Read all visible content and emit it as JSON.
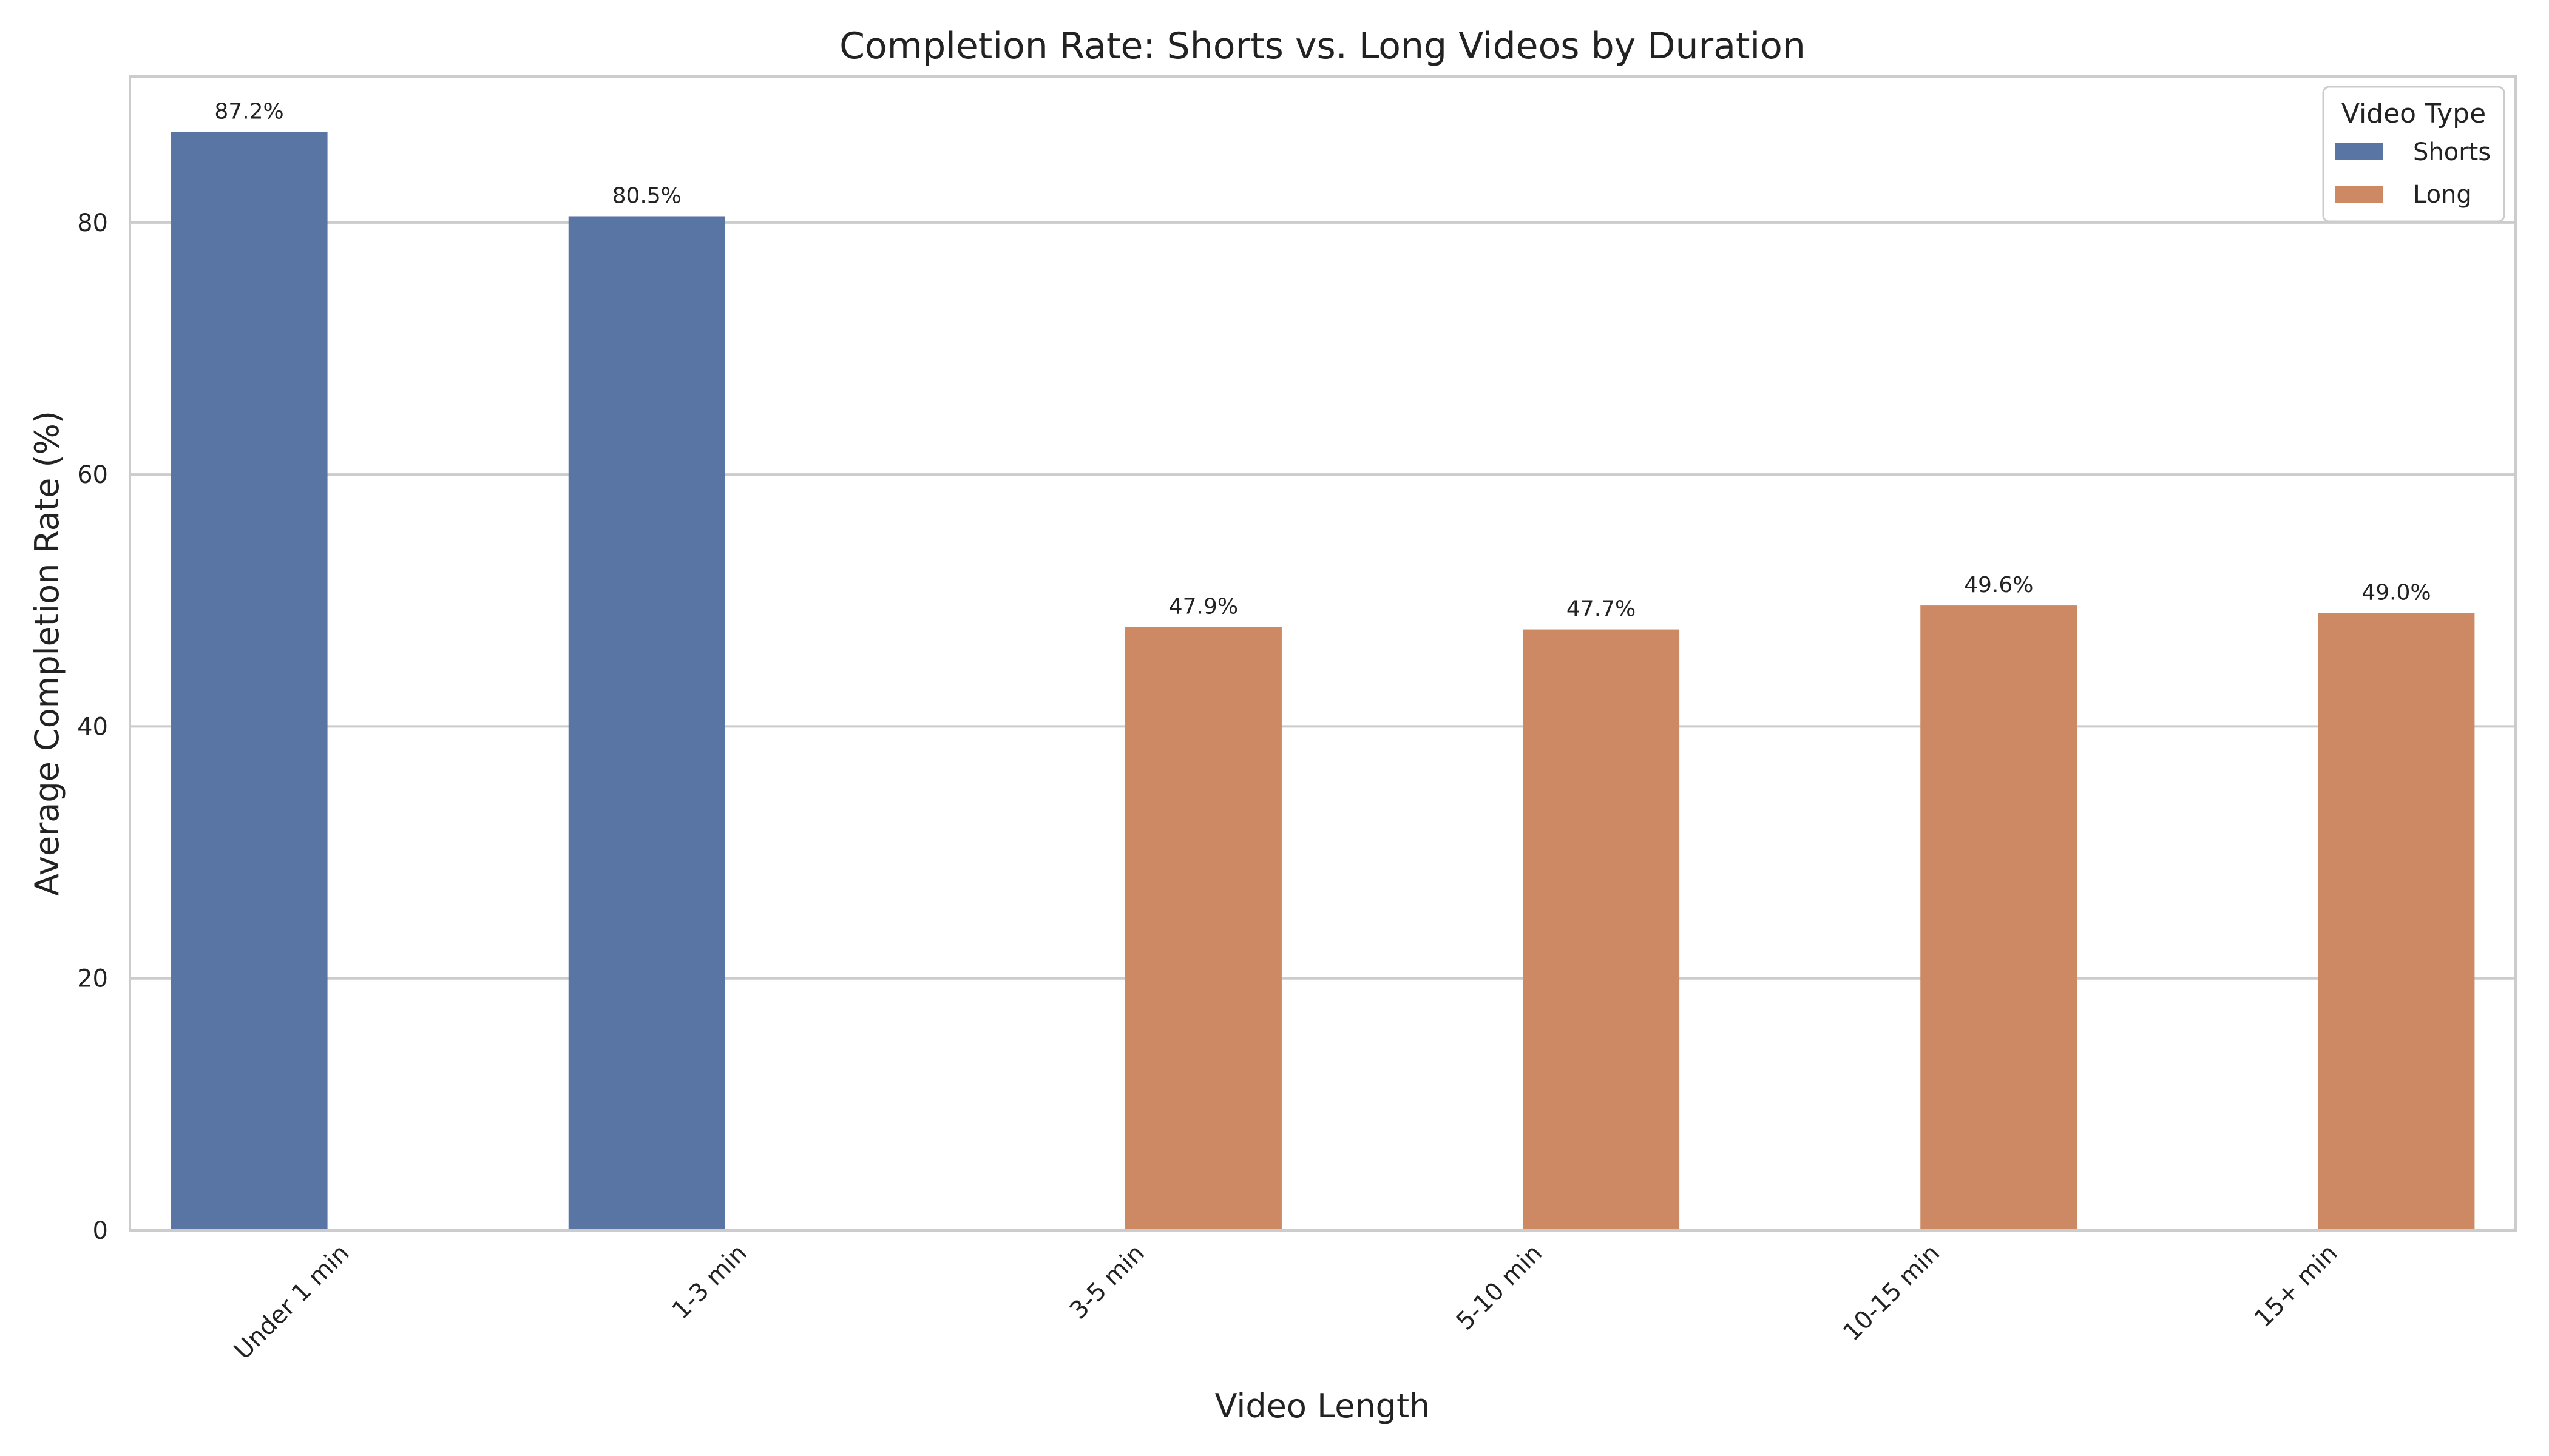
{
  "chart_data": {
    "type": "bar",
    "title": "Completion Rate: Shorts vs. Long Videos by Duration",
    "xlabel": "Video Length",
    "ylabel": "Average Completion Rate (%)",
    "categories": [
      "Under 1 min",
      "1-3 min",
      "3-5 min",
      "5-10 min",
      "10-15 min",
      "15+ min"
    ],
    "series": [
      {
        "name": "Shorts",
        "color": "#5875a4",
        "values": [
          87.2,
          80.5,
          null,
          null,
          null,
          null
        ]
      },
      {
        "name": "Long",
        "color": "#cc8963",
        "values": [
          null,
          null,
          47.9,
          47.7,
          49.6,
          49.0
        ]
      }
    ],
    "value_labels": [
      "87.2%",
      "80.5%",
      "47.9%",
      "47.7%",
      "49.6%",
      "49.0%"
    ],
    "yticks": [
      0,
      20,
      40,
      60,
      80
    ],
    "ylim": [
      0,
      91.6
    ],
    "grid": true,
    "legend": {
      "title": "Video Type",
      "position": "top-right"
    }
  }
}
